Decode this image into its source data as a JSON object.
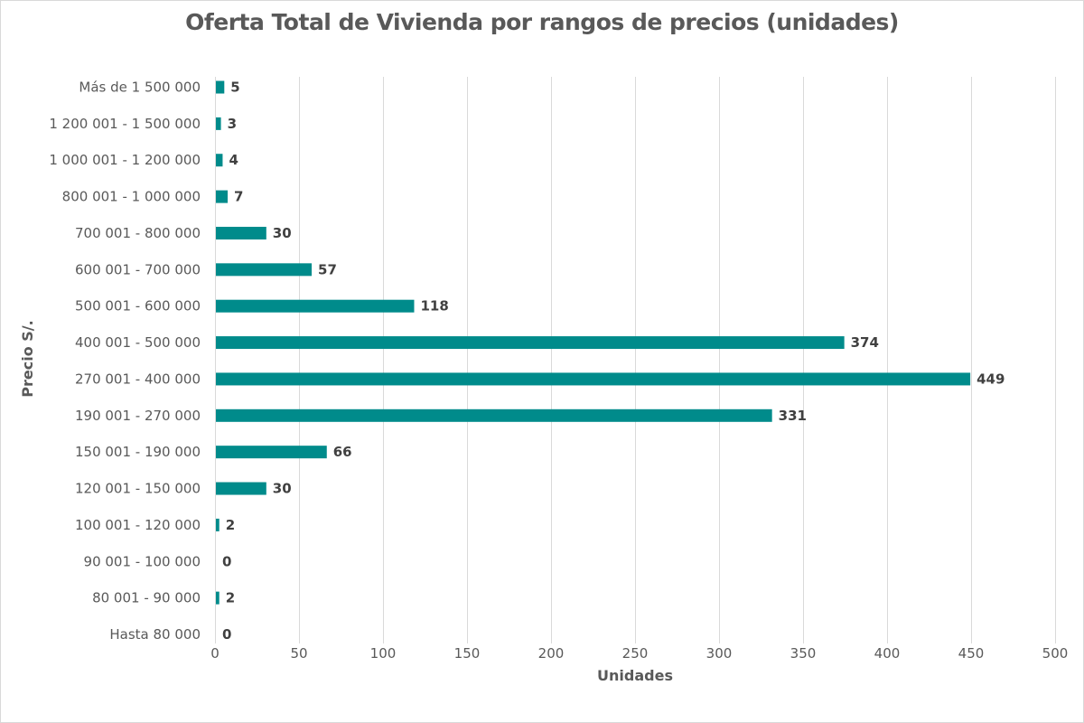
{
  "chart_data": {
    "type": "bar",
    "orientation": "horizontal",
    "title": "Oferta Total de Vivienda por rangos de precios (unidades)",
    "xlabel": "Unidades",
    "ylabel": "Precio S/.",
    "xlim": [
      0,
      500
    ],
    "x_ticks": [
      0,
      50,
      100,
      150,
      200,
      250,
      300,
      350,
      400,
      450,
      500
    ],
    "grid": true,
    "legend": "none",
    "bar_color": "#008b8b",
    "categories": [
      "Hasta 80 000",
      "80 001 - 90 000",
      "90 001 - 100 000",
      "100 001 - 120 000",
      "120 001 - 150 000",
      "150 001 - 190 000",
      "190 001 - 270 000",
      "270 001 - 400 000",
      "400 001 - 500 000",
      "500 001 - 600 000",
      "600 001 - 700 000",
      "700 001 - 800 000",
      "800 001 - 1 000 000",
      "1 000 001 - 1 200 000",
      "1 200 001 - 1 500 000",
      "Más de 1 500 000"
    ],
    "values": [
      0,
      2,
      0,
      2,
      30,
      66,
      331,
      449,
      374,
      118,
      57,
      30,
      7,
      4,
      3,
      5
    ]
  }
}
